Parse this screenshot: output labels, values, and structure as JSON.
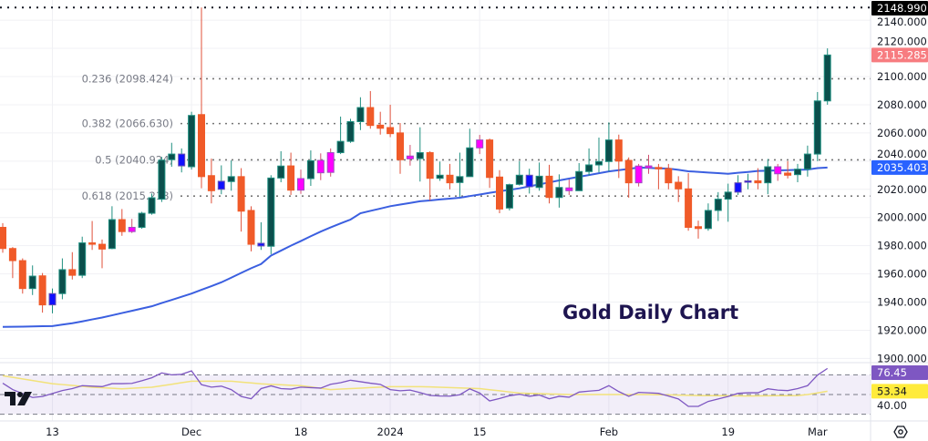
{
  "chart_data": [
    {
      "type": "candlestick",
      "title": "Gold Daily Chart",
      "ylim": [
        1890,
        2150
      ],
      "y_ticks": [
        2140,
        2120,
        2100,
        2080,
        2060,
        2040,
        2020,
        2000,
        1980,
        1960,
        1940,
        1920,
        1900
      ],
      "y_tick_labels": [
        "2140.000",
        "2120.000",
        "2100.000",
        "2080.000",
        "2060.000",
        "2040.000",
        "2020.000",
        "2000.000",
        "1980.000",
        "1960.000",
        "1940.000",
        "1920.000",
        "1900.000"
      ],
      "x_ticks": [
        {
          "date": "2023-11-13",
          "label": "13"
        },
        {
          "date": "2023-12-01",
          "label": "Dec"
        },
        {
          "date": "2023-12-18",
          "label": "18"
        },
        {
          "date": "2024-01-02",
          "label": "2024"
        },
        {
          "date": "2024-01-15",
          "label": "15"
        },
        {
          "date": "2024-02-01",
          "label": "Feb"
        },
        {
          "date": "2024-02-19",
          "label": "19"
        },
        {
          "date": "2024-03-01",
          "label": "Mar"
        }
      ],
      "grid": true,
      "candle_fields": [
        "date",
        "open",
        "high",
        "low",
        "close",
        "color"
      ],
      "candles": [
        [
          "2023-11-06",
          1993,
          1996,
          1975,
          1978,
          "down"
        ],
        [
          "2023-11-07",
          1978,
          1979,
          1957,
          1969.4,
          "down"
        ],
        [
          "2023-11-08",
          1969.4,
          1971,
          1946,
          1949.6,
          "down"
        ],
        [
          "2023-11-09",
          1949.6,
          1966,
          1945,
          1958.4,
          "up"
        ],
        [
          "2023-11-10",
          1958.6,
          1960.6,
          1932.5,
          1938,
          "down"
        ],
        [
          "2023-11-13",
          1938,
          1949.6,
          1932,
          1946,
          "blue"
        ],
        [
          "2023-11-14",
          1946,
          1971,
          1942,
          1963,
          "up"
        ],
        [
          "2023-11-15",
          1963,
          1975.4,
          1956,
          1959,
          "down"
        ],
        [
          "2023-11-16",
          1959,
          1986.4,
          1957,
          1982,
          "up"
        ],
        [
          "2023-11-17",
          1982,
          1997.5,
          1977,
          1981,
          "down"
        ],
        [
          "2023-11-20",
          1981,
          1984.4,
          1964,
          1977.6,
          "down"
        ],
        [
          "2023-11-21",
          1978,
          2008,
          1977.5,
          1998.5,
          "up"
        ],
        [
          "2023-11-22",
          1998.5,
          2006,
          1987,
          1990,
          "down"
        ],
        [
          "2023-11-23",
          1990,
          1999,
          1989,
          1993,
          "magenta"
        ],
        [
          "2023-11-24",
          1993,
          2004,
          1992,
          2003,
          "up"
        ],
        [
          "2023-11-27",
          2003,
          2017,
          2002,
          2014,
          "up"
        ],
        [
          "2023-11-28",
          2013,
          2043,
          2011,
          2040.7,
          "up"
        ],
        [
          "2023-11-29",
          2041,
          2053,
          2036,
          2045,
          "up"
        ],
        [
          "2023-11-30",
          2045,
          2049,
          2032,
          2036.6,
          "blue"
        ],
        [
          "2023-12-01",
          2036,
          2075,
          2034,
          2072.4,
          "up"
        ],
        [
          "2023-12-04",
          2073,
          2148.99,
          2020.7,
          2029,
          "down"
        ],
        [
          "2023-12-05",
          2029.7,
          2041.8,
          2010,
          2019,
          "down"
        ],
        [
          "2023-12-06",
          2020,
          2037,
          2016.5,
          2025.7,
          "blue"
        ],
        [
          "2023-12-07",
          2025.5,
          2040.5,
          2019,
          2029,
          "up"
        ],
        [
          "2023-12-08",
          2029,
          2035,
          1990,
          2004.5,
          "down"
        ],
        [
          "2023-12-11",
          2005,
          2008,
          1976,
          1981,
          "down"
        ],
        [
          "2023-12-12",
          1981.7,
          1996.6,
          1977,
          1979.8,
          "blue"
        ],
        [
          "2023-12-13",
          1979.6,
          2030,
          1974,
          2028,
          "up"
        ],
        [
          "2023-12-14",
          2028,
          2047,
          2025,
          2036.5,
          "up"
        ],
        [
          "2023-12-15",
          2036.6,
          2046,
          2016,
          2019.4,
          "down"
        ],
        [
          "2023-12-18",
          2019.4,
          2034,
          2016.8,
          2027.6,
          "magenta"
        ],
        [
          "2023-12-19",
          2027.6,
          2047.6,
          2022.4,
          2040.3,
          "up"
        ],
        [
          "2023-12-20",
          2031.7,
          2045.5,
          2026.5,
          2040.5,
          "magenta"
        ],
        [
          "2023-12-21",
          2032,
          2049,
          2029,
          2046,
          "magenta"
        ],
        [
          "2023-12-22",
          2046,
          2071.6,
          2045,
          2054,
          "up"
        ],
        [
          "2023-12-26",
          2054,
          2070,
          2053,
          2068,
          "up"
        ],
        [
          "2023-12-27",
          2068,
          2085.3,
          2062,
          2078,
          "up"
        ],
        [
          "2023-12-28",
          2078,
          2089.7,
          2063,
          2065.3,
          "down"
        ],
        [
          "2023-12-29",
          2065.5,
          2075,
          2058.8,
          2063.3,
          "down"
        ],
        [
          "2024-01-02",
          2063.8,
          2080,
          2057,
          2059.5,
          "down"
        ],
        [
          "2024-01-03",
          2060,
          2067,
          2031,
          2041,
          "down"
        ],
        [
          "2024-01-04",
          2041.6,
          2051.5,
          2036.8,
          2043.6,
          "magenta"
        ],
        [
          "2024-01-05",
          2041.8,
          2064,
          2025.5,
          2046,
          "up"
        ],
        [
          "2024-01-08",
          2046,
          2047,
          2012,
          2027.8,
          "down"
        ],
        [
          "2024-01-09",
          2027.8,
          2039.7,
          2026,
          2030,
          "up"
        ],
        [
          "2024-01-10",
          2030,
          2038,
          2020,
          2024.6,
          "down"
        ],
        [
          "2024-01-11",
          2024.8,
          2046,
          2014.7,
          2029,
          "up"
        ],
        [
          "2024-01-12",
          2029,
          2063,
          2029,
          2049.4,
          "up"
        ],
        [
          "2024-01-15",
          2049.4,
          2058.6,
          2045,
          2055,
          "magenta"
        ],
        [
          "2024-01-16",
          2055,
          2056,
          2021,
          2028.4,
          "down"
        ],
        [
          "2024-01-17",
          2028.7,
          2033.6,
          2003,
          2006,
          "down"
        ],
        [
          "2024-01-18",
          2006.7,
          2024,
          2005,
          2023.3,
          "up"
        ],
        [
          "2024-01-19",
          2023.5,
          2040,
          2022.7,
          2030,
          "up"
        ],
        [
          "2024-01-22",
          2021.8,
          2034.6,
          2017,
          2030,
          "blue"
        ],
        [
          "2024-01-23",
          2021.3,
          2039,
          2019,
          2029.3,
          "up"
        ],
        [
          "2024-01-24",
          2029.3,
          2037.4,
          2010,
          2014.2,
          "down"
        ],
        [
          "2024-01-25",
          2014.2,
          2030.6,
          2007,
          2021.3,
          "up"
        ],
        [
          "2024-01-26",
          2021,
          2027,
          2016,
          2019,
          "magenta"
        ],
        [
          "2024-01-29",
          2019,
          2038.6,
          2019,
          2032.6,
          "up"
        ],
        [
          "2024-01-30",
          2032.6,
          2049,
          2029.7,
          2037.3,
          "up"
        ],
        [
          "2024-01-31",
          2037.3,
          2056.7,
          2032,
          2039.7,
          "up"
        ],
        [
          "2024-02-01",
          2039.7,
          2067.5,
          2032.6,
          2055,
          "up"
        ],
        [
          "2024-02-02",
          2055,
          2058.8,
          2028,
          2040,
          "down"
        ],
        [
          "2024-02-05",
          2040.5,
          2042.6,
          2014,
          2024.6,
          "down"
        ],
        [
          "2024-02-06",
          2024.6,
          2038,
          2022,
          2036.5,
          "magenta"
        ],
        [
          "2024-02-07",
          2036.6,
          2044.5,
          2031,
          2035.2,
          "magenta"
        ],
        [
          "2024-02-08",
          2035.5,
          2038,
          2020,
          2034.5,
          "down"
        ],
        [
          "2024-02-09",
          2034.7,
          2038,
          2020,
          2024.6,
          "down"
        ],
        [
          "2024-02-12",
          2025,
          2029.3,
          2011,
          2020.3,
          "down"
        ],
        [
          "2024-02-13",
          2020.3,
          2031.5,
          1990.6,
          1993,
          "down"
        ],
        [
          "2024-02-14",
          1993.5,
          1997.8,
          1985,
          1992.2,
          "down"
        ],
        [
          "2024-02-15",
          1992.2,
          2010,
          1990.6,
          2005,
          "up"
        ],
        [
          "2024-02-16",
          2005,
          2018,
          1997.5,
          2013,
          "up"
        ],
        [
          "2024-02-19",
          2013,
          2024,
          1997,
          2018,
          "up"
        ],
        [
          "2024-02-20",
          2018,
          2030,
          2016,
          2024.6,
          "blue"
        ],
        [
          "2024-02-21",
          2025,
          2031,
          2020,
          2026,
          "blue"
        ],
        [
          "2024-02-22",
          2026,
          2035,
          2020,
          2024.6,
          "down"
        ],
        [
          "2024-02-23",
          2024.6,
          2041.5,
          2016.5,
          2036,
          "up"
        ],
        [
          "2024-02-26",
          2031,
          2038,
          2026,
          2036,
          "magenta"
        ],
        [
          "2024-02-27",
          2031.5,
          2040,
          2027.7,
          2030,
          "down"
        ],
        [
          "2024-02-28",
          2030.4,
          2038,
          2025,
          2034.3,
          "up"
        ],
        [
          "2024-02-29",
          2034.3,
          2051,
          2029,
          2045,
          "up"
        ],
        [
          "2024-03-01",
          2045,
          2089,
          2040,
          2082.7,
          "up"
        ],
        [
          "2024-03-04",
          2082.7,
          2120,
          2080,
          2115.285,
          "up"
        ]
      ],
      "moving_average": [
        1922.4,
        1922.5,
        1922.6,
        1922.7,
        1922.9,
        1923,
        1924,
        1925,
        1926.3,
        1927.7,
        1929,
        1930.6,
        1932.2,
        1933.8,
        1935.4,
        1937,
        1939.3,
        1941.5,
        1943.8,
        1946,
        1948.7,
        1951.3,
        1954,
        1957.3,
        1960.7,
        1964,
        1967,
        1973,
        1976.5,
        1980,
        1983.3,
        1986.7,
        1990,
        1993,
        1995.8,
        1998.5,
        2003,
        2004.7,
        2006.3,
        2008,
        2009.2,
        2010.3,
        2011.5,
        2012.1,
        2012.8,
        2013.4,
        2014,
        2015.2,
        2016.3,
        2017.5,
        2018.6,
        2019.6,
        2020.7,
        2022.1,
        2023.5,
        2024.9,
        2026.3,
        2027.6,
        2028.9,
        2030.1,
        2031.4,
        2032.7,
        2033.6,
        2034.5,
        2035.4,
        2035.2,
        2034.9,
        2034.7,
        2033.8,
        2032.8,
        2032.4,
        2031.9,
        2031.5,
        2031,
        2031.7,
        2032.3,
        2033,
        2033.2,
        2033.4,
        2033.6,
        2033.8,
        2034,
        2035,
        2035.403
      ],
      "fibonacci": [
        {
          "label": "0.236 (2098.424)",
          "value": 2098.424
        },
        {
          "label": "0.382 (2066.630)",
          "value": 2066.63
        },
        {
          "label": "0.5 (2040.924)",
          "value": 2040.924
        },
        {
          "label": "0.618 (2015.218)",
          "value": 2015.218
        }
      ],
      "high_line": 2148.99,
      "price_badges": [
        {
          "label": "2148.990",
          "value": 2148.99,
          "bg": "#000000",
          "fg": "#ffffff"
        },
        {
          "label": "2115.285",
          "value": 2115.285,
          "bg": "#f77c80",
          "fg": "#ffffff"
        },
        {
          "label": "2035.403",
          "value": 2035.403,
          "bg": "#2962ff",
          "fg": "#ffffff"
        }
      ],
      "colors": {
        "up_body": "#0b4f4c",
        "up_border": "#1f8f80",
        "down": "#f05a28",
        "down_wick": "#e0503a",
        "blue": "#1010ff",
        "magenta": "#ff00ff",
        "ma": "#3b5fe0"
      }
    },
    {
      "type": "line",
      "indicator": "RSI",
      "ylim": [
        25,
        80
      ],
      "levels": [
        70,
        50,
        30
      ],
      "y_tick_labels": [
        "40.00"
      ],
      "y_ticks": [
        40
      ],
      "rsi": [
        61.5,
        55,
        51,
        47,
        48,
        51,
        54,
        56,
        59,
        58.5,
        58,
        61,
        61,
        61.3,
        64,
        67,
        71.9,
        70,
        70.5,
        74,
        60,
        57.5,
        58.5,
        55,
        48,
        45.7,
        56,
        58.8,
        56,
        55.5,
        57.5,
        57,
        56.5,
        60.4,
        62,
        64.5,
        63,
        61.5,
        60.3,
        55,
        53.8,
        54.5,
        52,
        49.1,
        48.5,
        48.4,
        49.8,
        55.8,
        51.5,
        43.5,
        46,
        48.8,
        50.3,
        48.2,
        49.5,
        45.7,
        48.2,
        47.3,
        52.5,
        53.5,
        54.3,
        59,
        53,
        48.2,
        52.2,
        51.7,
        51.2,
        48.5,
        45.5,
        38,
        38,
        43,
        45.5,
        48,
        51.2,
        51.8,
        51.8,
        55.8,
        54.5,
        54,
        56,
        59,
        69.7,
        76.45
      ],
      "rsi_ma": [
        69,
        67.4,
        65.8,
        64.2,
        62.6,
        61,
        60.1,
        59.2,
        58.3,
        57.4,
        56.9,
        56.3,
        55.8,
        56.3,
        56.9,
        57.4,
        58.9,
        60.4,
        62,
        63.5,
        63.5,
        63.5,
        63.5,
        63.5,
        62.6,
        61.8,
        60.9,
        60.3,
        59.9,
        59.4,
        59,
        57.7,
        56.3,
        55,
        55.5,
        56,
        56.5,
        57,
        57.5,
        58,
        58,
        58,
        58,
        57.7,
        57.4,
        57,
        56.7,
        56.3,
        56,
        54.9,
        53.8,
        52.6,
        51.5,
        51.2,
        50.9,
        50.6,
        50.3,
        50,
        50,
        50,
        50,
        50,
        50,
        50,
        50,
        50,
        49.8,
        49.6,
        49.4,
        49.2,
        49,
        48.9,
        48.8,
        48.7,
        48.6,
        48.5,
        48.6,
        48.7,
        48.8,
        48.9,
        49,
        50,
        51.6,
        53.34
      ],
      "badges": [
        {
          "label": "76.45",
          "value": 76.45,
          "bg": "#7e57c2",
          "fg": "#ffffff"
        },
        {
          "label": "53.34",
          "value": 53.34,
          "bg": "#ffeb3b",
          "fg": "#131722"
        }
      ],
      "colors": {
        "rsi": "#7e57c2",
        "rsi_ma": "#f2e27a",
        "band": "#7e57c2"
      }
    }
  ],
  "ui": {
    "logo_text": "TV",
    "settings_icon": "gear-icon"
  }
}
